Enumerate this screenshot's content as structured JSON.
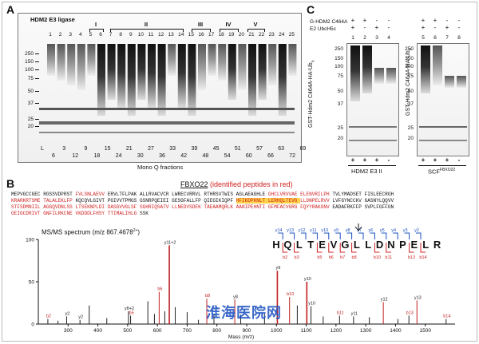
{
  "panel_a": {
    "letter": "A",
    "title": "HDM2 E3 ligase",
    "mw_markers": [
      "250",
      "150",
      "100",
      "75",
      "50",
      "37",
      "25",
      "20"
    ],
    "lane_numbers": [
      "1",
      "2",
      "3",
      "4",
      "5",
      "6",
      "7",
      "8",
      "9",
      "10",
      "11",
      "12",
      "13",
      "14",
      "15",
      "16",
      "17",
      "18",
      "19",
      "20",
      "21",
      "22",
      "23",
      "24",
      "25"
    ],
    "groups": [
      "I",
      "II",
      "III",
      "IV",
      "V"
    ],
    "fractions_row1": [
      "L",
      "3",
      "9",
      "15",
      "21",
      "27",
      "33",
      "39",
      "45",
      "51",
      "57",
      "63",
      "69"
    ],
    "fractions_row2": [
      "6",
      "12",
      "18",
      "24",
      "30",
      "36",
      "42",
      "48",
      "54",
      "60",
      "66",
      "72"
    ],
    "xlabel": "Mono Q fractions"
  },
  "panel_c": {
    "letter": "C",
    "row1_label": "G-HDM2 C464A",
    "row2_label": "E2 UbcH5c",
    "left_signs_row1": [
      "+",
      "+",
      "-",
      "-"
    ],
    "left_signs_row2": [
      "+",
      "-",
      "+",
      "-"
    ],
    "right_signs_row1": [
      "+",
      "+",
      "-",
      "-"
    ],
    "right_signs_row2": [
      "+",
      "-",
      "+",
      "-"
    ],
    "left_lanes": [
      "1",
      "2",
      "3",
      "4"
    ],
    "right_lanes": [
      "5",
      "6",
      "7",
      "8"
    ],
    "mw_markers": [
      "250",
      "150",
      "100",
      "75",
      "50",
      "37",
      "25",
      "20"
    ],
    "ylabel": "GST-Hdm2 C464A-HA-Ub",
    "ylabel_sub": "n",
    "bottom_signs_left": [
      "+",
      "+",
      "+",
      "-"
    ],
    "bottom_signs_right": [
      "+",
      "+",
      "+",
      "-"
    ],
    "left_caption": "HDM2 E3 II",
    "right_caption": "SCF",
    "right_caption_sup": "FBXO22"
  },
  "panel_b": {
    "letter": "B",
    "title": "FBXO22",
    "subtitle": "(identified peptides in red)",
    "sequence_lines": [
      "MEPVGCCGEC RGSSVDPRST FVLSNLAEVV ERVLTFLPAK ALLRVACVCR LWRECVRRVL RTHRSVTWIS AGLAEAGHLE GHCLVRVVAE ELENVRILPH TVLYMADSET FISLEECRGH",
      "KRARKRTSME TALALEKLFP KQCQVLGIVT PGIVVTPMGS GSNRPQEIEI GESGFALLFP QIEGIKIQPF HFIKDPKNLT LERHQLTEVG LLDNPELRVV LVFGYNCCKV GASNYLQQVV",
      "STFSDMNIIL AGGQVDNLSS LTSEKNPLDI DASGVVGLSF SGHRIQSATV LLNEDVSDEK TAEAAMQRLK AANIPEHNTI GFMFACVGRG FQYYRAKGNV EADAFRKFFP SVPLFGFFGN",
      "GEIGCDRIVT GNFILRKCNE VKDDDLFHSY TTIMALIHLG SSK"
    ],
    "spectrum_title": "MS/MS spectrum (m/z 867.4678",
    "spectrum_title_sup": "2+",
    "peptide": [
      "H",
      "Q",
      "L",
      "T",
      "E",
      "V",
      "G",
      "L",
      "L",
      "D",
      "N",
      "P",
      "E",
      "L",
      "R"
    ],
    "y_ion_labels": [
      "y14",
      "y13",
      "y12",
      "y11",
      "y10",
      "y9",
      "y8",
      "y7",
      "y6",
      "y5",
      "y4",
      "y3",
      "y2"
    ],
    "b_ion_labels": [
      "b2",
      "b3",
      "b5",
      "b6",
      "b7",
      "b8",
      "b10",
      "b11",
      "b13",
      "b14"
    ],
    "xlabel": "Mass (m/z)",
    "watermark": "淮海医院网"
  },
  "chart_data": {
    "type": "bar",
    "title": "MS/MS spectrum (m/z 867.4678 2+)",
    "xlabel": "Mass (m/z)",
    "ylabel": "",
    "xlim": [
      200,
      1600
    ],
    "ylim": [
      0,
      100
    ],
    "xticks": [
      300,
      400,
      500,
      600,
      700,
      800,
      900,
      1000,
      1100,
      1200,
      1300,
      1400,
      1500
    ],
    "yticks": [
      0,
      50,
      100
    ],
    "peaks": [
      {
        "mz": 232,
        "intensity": 6,
        "label": "b2"
      },
      {
        "mz": 266,
        "intensity": 4,
        "label": ""
      },
      {
        "mz": 295,
        "intensity": 9,
        "label": "y2"
      },
      {
        "mz": 340,
        "intensity": 5,
        "label": "y2"
      },
      {
        "mz": 371,
        "intensity": 22,
        "label": ""
      },
      {
        "mz": 430,
        "intensity": 7,
        "label": ""
      },
      {
        "mz": 503,
        "intensity": 15,
        "label": "y8+2"
      },
      {
        "mz": 510,
        "intensity": 10,
        "label": "b5"
      },
      {
        "mz": 568,
        "intensity": 27,
        "label": ""
      },
      {
        "mz": 590,
        "intensity": 12,
        "label": ""
      },
      {
        "mz": 606,
        "intensity": 38,
        "label": "b6"
      },
      {
        "mz": 625,
        "intensity": 15,
        "label": ""
      },
      {
        "mz": 640,
        "intensity": 93,
        "label": "y11+2"
      },
      {
        "mz": 660,
        "intensity": 20,
        "label": ""
      },
      {
        "mz": 700,
        "intensity": 14,
        "label": ""
      },
      {
        "mz": 738,
        "intensity": 5,
        "label": ""
      },
      {
        "mz": 766,
        "intensity": 30,
        "label": "b8"
      },
      {
        "mz": 790,
        "intensity": 12,
        "label": ""
      },
      {
        "mz": 860,
        "intensity": 29,
        "label": "y8"
      },
      {
        "mz": 880,
        "intensity": 11,
        "label": ""
      },
      {
        "mz": 960,
        "intensity": 12,
        "label": ""
      },
      {
        "mz": 1003,
        "intensity": 63,
        "label": "y9"
      },
      {
        "mz": 1044,
        "intensity": 32,
        "label": "b10"
      },
      {
        "mz": 1070,
        "intensity": 22,
        "label": ""
      },
      {
        "mz": 1102,
        "intensity": 50,
        "label": "y10"
      },
      {
        "mz": 1116,
        "intensity": 21,
        "label": "y10"
      },
      {
        "mz": 1157,
        "intensity": 9,
        "label": ""
      },
      {
        "mz": 1212,
        "intensity": 10,
        "label": "b11"
      },
      {
        "mz": 1259,
        "intensity": 9,
        "label": "y11"
      },
      {
        "mz": 1312,
        "intensity": 8,
        "label": ""
      },
      {
        "mz": 1359,
        "intensity": 26,
        "label": "y12"
      },
      {
        "mz": 1408,
        "intensity": 6,
        "label": ""
      },
      {
        "mz": 1445,
        "intensity": 10,
        "label": "b13"
      },
      {
        "mz": 1472,
        "intensity": 28,
        "label": "y13"
      },
      {
        "mz": 1570,
        "intensity": 6,
        "label": "b14"
      }
    ]
  }
}
